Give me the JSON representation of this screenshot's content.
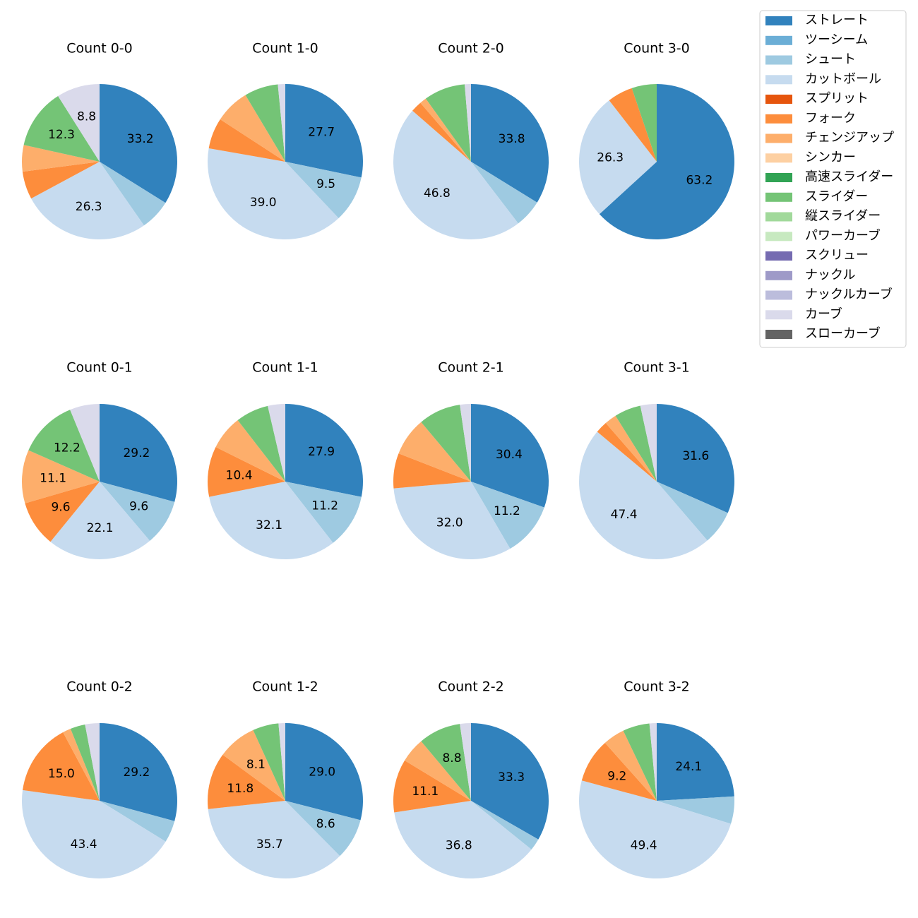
{
  "chart_data": {
    "type": "pie",
    "legend_placement": "top-right",
    "legend": [
      {
        "name": "ストレート",
        "color": "#3182bd"
      },
      {
        "name": "ツーシーム",
        "color": "#6baed6"
      },
      {
        "name": "シュート",
        "color": "#9ecae1"
      },
      {
        "name": "カットボール",
        "color": "#c6dbef"
      },
      {
        "name": "スプリット",
        "color": "#e6550d"
      },
      {
        "name": "フォーク",
        "color": "#fd8d3c"
      },
      {
        "name": "チェンジアップ",
        "color": "#fdae6b"
      },
      {
        "name": "シンカー",
        "color": "#fdd0a2"
      },
      {
        "name": "高速スライダー",
        "color": "#31a354"
      },
      {
        "name": "スライダー",
        "color": "#74c476"
      },
      {
        "name": "縦スライダー",
        "color": "#a1d99b"
      },
      {
        "name": "パワーカーブ",
        "color": "#c7e9c0"
      },
      {
        "name": "スクリュー",
        "color": "#756bb1"
      },
      {
        "name": "ナックル",
        "color": "#9e9ac8"
      },
      {
        "name": "ナックルカーブ",
        "color": "#bcbddc"
      },
      {
        "name": "カーブ",
        "color": "#dadaeb"
      },
      {
        "name": "スローカーブ",
        "color": "#636363"
      }
    ],
    "charts": [
      {
        "title": "Count 0-0",
        "slices": [
          {
            "name": "ストレート",
            "value": 33.2,
            "label": "33.2"
          },
          {
            "name": "シュート",
            "value": 6.3,
            "label": ""
          },
          {
            "name": "カットボール",
            "value": 26.3,
            "label": "26.3"
          },
          {
            "name": "フォーク",
            "value": 5.7,
            "label": ""
          },
          {
            "name": "チェンジアップ",
            "value": 5.4,
            "label": ""
          },
          {
            "name": "スライダー",
            "value": 12.3,
            "label": "12.3"
          },
          {
            "name": "カーブ",
            "value": 8.8,
            "label": "8.8"
          }
        ]
      },
      {
        "title": "Count 1-0",
        "slices": [
          {
            "name": "ストレート",
            "value": 27.7,
            "label": "27.7"
          },
          {
            "name": "シュート",
            "value": 9.5,
            "label": "9.5"
          },
          {
            "name": "カットボール",
            "value": 39.0,
            "label": "39.0"
          },
          {
            "name": "フォーク",
            "value": 6.3,
            "label": ""
          },
          {
            "name": "チェンジアップ",
            "value": 7.1,
            "label": ""
          },
          {
            "name": "スライダー",
            "value": 6.9,
            "label": ""
          },
          {
            "name": "カーブ",
            "value": 1.5,
            "label": ""
          }
        ]
      },
      {
        "title": "Count 2-0",
        "slices": [
          {
            "name": "ストレート",
            "value": 33.8,
            "label": "33.8"
          },
          {
            "name": "シュート",
            "value": 5.8,
            "label": ""
          },
          {
            "name": "カットボール",
            "value": 46.8,
            "label": "46.8"
          },
          {
            "name": "フォーク",
            "value": 2.3,
            "label": ""
          },
          {
            "name": "チェンジアップ",
            "value": 1.4,
            "label": ""
          },
          {
            "name": "スライダー",
            "value": 8.6,
            "label": ""
          },
          {
            "name": "カーブ",
            "value": 1.3,
            "label": ""
          }
        ]
      },
      {
        "title": "Count 3-0",
        "slices": [
          {
            "name": "ストレート",
            "value": 63.2,
            "label": "63.2"
          },
          {
            "name": "カットボール",
            "value": 26.3,
            "label": "26.3"
          },
          {
            "name": "フォーク",
            "value": 5.3,
            "label": ""
          },
          {
            "name": "スライダー",
            "value": 5.2,
            "label": ""
          }
        ]
      },
      {
        "title": "Count 0-1",
        "slices": [
          {
            "name": "ストレート",
            "value": 29.2,
            "label": "29.2"
          },
          {
            "name": "シュート",
            "value": 9.6,
            "label": "9.6"
          },
          {
            "name": "カットボール",
            "value": 22.1,
            "label": "22.1"
          },
          {
            "name": "フォーク",
            "value": 9.6,
            "label": "9.6"
          },
          {
            "name": "チェンジアップ",
            "value": 11.1,
            "label": "11.1"
          },
          {
            "name": "スライダー",
            "value": 12.2,
            "label": "12.2"
          },
          {
            "name": "カーブ",
            "value": 6.2,
            "label": ""
          }
        ]
      },
      {
        "title": "Count 1-1",
        "slices": [
          {
            "name": "ストレート",
            "value": 27.9,
            "label": "27.9"
          },
          {
            "name": "シュート",
            "value": 11.2,
            "label": "11.2"
          },
          {
            "name": "カットボール",
            "value": 32.1,
            "label": "32.1"
          },
          {
            "name": "フォーク",
            "value": 10.4,
            "label": "10.4"
          },
          {
            "name": "チェンジアップ",
            "value": 7.1,
            "label": ""
          },
          {
            "name": "スライダー",
            "value": 6.8,
            "label": ""
          },
          {
            "name": "カーブ",
            "value": 3.6,
            "label": ""
          }
        ]
      },
      {
        "title": "Count 2-1",
        "slices": [
          {
            "name": "ストレート",
            "value": 30.4,
            "label": "30.4"
          },
          {
            "name": "シュート",
            "value": 11.2,
            "label": "11.2"
          },
          {
            "name": "カットボール",
            "value": 32.0,
            "label": "32.0"
          },
          {
            "name": "フォーク",
            "value": 7.3,
            "label": ""
          },
          {
            "name": "チェンジアップ",
            "value": 8.0,
            "label": ""
          },
          {
            "name": "スライダー",
            "value": 8.8,
            "label": ""
          },
          {
            "name": "カーブ",
            "value": 2.3,
            "label": ""
          }
        ]
      },
      {
        "title": "Count 3-1",
        "slices": [
          {
            "name": "ストレート",
            "value": 31.6,
            "label": "31.6"
          },
          {
            "name": "シュート",
            "value": 7.1,
            "label": ""
          },
          {
            "name": "カットボール",
            "value": 47.4,
            "label": "47.4"
          },
          {
            "name": "フォーク",
            "value": 2.5,
            "label": ""
          },
          {
            "name": "チェンジアップ",
            "value": 2.5,
            "label": ""
          },
          {
            "name": "スライダー",
            "value": 5.5,
            "label": ""
          },
          {
            "name": "カーブ",
            "value": 3.4,
            "label": ""
          }
        ]
      },
      {
        "title": "Count 0-2",
        "slices": [
          {
            "name": "ストレート",
            "value": 29.2,
            "label": "29.2"
          },
          {
            "name": "シュート",
            "value": 4.6,
            "label": ""
          },
          {
            "name": "カットボール",
            "value": 43.4,
            "label": "43.4"
          },
          {
            "name": "フォーク",
            "value": 15.0,
            "label": "15.0"
          },
          {
            "name": "チェンジアップ",
            "value": 1.7,
            "label": ""
          },
          {
            "name": "スライダー",
            "value": 3.1,
            "label": ""
          },
          {
            "name": "カーブ",
            "value": 3.0,
            "label": ""
          }
        ]
      },
      {
        "title": "Count 1-2",
        "slices": [
          {
            "name": "ストレート",
            "value": 29.0,
            "label": "29.0"
          },
          {
            "name": "シュート",
            "value": 8.6,
            "label": "8.6"
          },
          {
            "name": "カットボール",
            "value": 35.7,
            "label": "35.7"
          },
          {
            "name": "フォーク",
            "value": 11.8,
            "label": "11.8"
          },
          {
            "name": "チェンジアップ",
            "value": 8.1,
            "label": "8.1"
          },
          {
            "name": "スライダー",
            "value": 5.4,
            "label": ""
          },
          {
            "name": "カーブ",
            "value": 1.4,
            "label": ""
          }
        ]
      },
      {
        "title": "Count 2-2",
        "slices": [
          {
            "name": "ストレート",
            "value": 33.3,
            "label": "33.3"
          },
          {
            "name": "シュート",
            "value": 2.5,
            "label": ""
          },
          {
            "name": "カットボール",
            "value": 36.8,
            "label": "36.8"
          },
          {
            "name": "フォーク",
            "value": 11.1,
            "label": "11.1"
          },
          {
            "name": "チェンジアップ",
            "value": 5.2,
            "label": ""
          },
          {
            "name": "スライダー",
            "value": 8.8,
            "label": "8.8"
          },
          {
            "name": "カーブ",
            "value": 2.3,
            "label": ""
          }
        ]
      },
      {
        "title": "Count 3-2",
        "slices": [
          {
            "name": "ストレート",
            "value": 24.1,
            "label": "24.1"
          },
          {
            "name": "シュート",
            "value": 5.7,
            "label": ""
          },
          {
            "name": "カットボール",
            "value": 49.4,
            "label": "49.4"
          },
          {
            "name": "フォーク",
            "value": 9.2,
            "label": "9.2"
          },
          {
            "name": "チェンジアップ",
            "value": 4.5,
            "label": ""
          },
          {
            "name": "スライダー",
            "value": 5.6,
            "label": ""
          },
          {
            "name": "カーブ",
            "value": 1.5,
            "label": ""
          }
        ]
      }
    ]
  }
}
